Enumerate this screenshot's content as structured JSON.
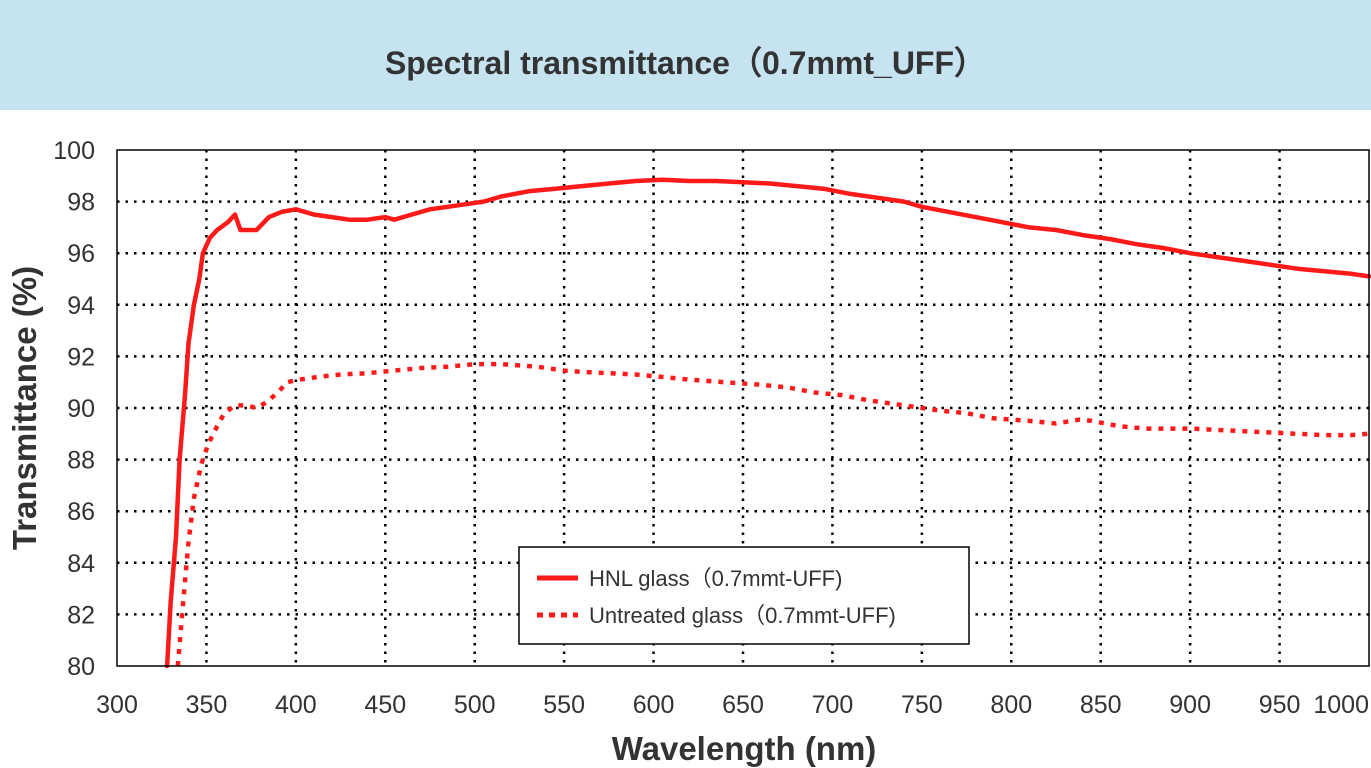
{
  "header": {
    "title": "Spectral transmittance（0.7mmt_UFF）"
  },
  "colors": {
    "header_bg": "#c5e4f0",
    "series": "#ff1a1a",
    "grid": "#000000",
    "text": "#333333"
  },
  "chart_data": {
    "type": "line",
    "title": "Spectral transmittance（0.7mmt_UFF）",
    "xlabel": "Wavelength (nm)",
    "ylabel": "Transmittance (%)",
    "xlim": [
      300,
      1000
    ],
    "ylim": [
      80,
      100
    ],
    "x_ticks": [
      "300",
      "350",
      "400",
      "450",
      "500",
      "550",
      "600",
      "650",
      "700",
      "750",
      "800",
      "850",
      "900",
      "950",
      "1000"
    ],
    "y_ticks": [
      "80",
      "82",
      "84",
      "86",
      "88",
      "90",
      "92",
      "94",
      "96",
      "98",
      "100"
    ],
    "grid": true,
    "grid_style": "dotted",
    "legend_position": "bottom-center",
    "series": [
      {
        "name": "HNL glass（0.7mmt-UFF)",
        "style": "solid",
        "color": "#ff1a1a",
        "points": [
          [
            328,
            80
          ],
          [
            330,
            82.5
          ],
          [
            333,
            85
          ],
          [
            335,
            88
          ],
          [
            338,
            90.5
          ],
          [
            340,
            92.5
          ],
          [
            343,
            94
          ],
          [
            346,
            95
          ],
          [
            348,
            96
          ],
          [
            352,
            96.6
          ],
          [
            356,
            96.9
          ],
          [
            362,
            97.2
          ],
          [
            366,
            97.5
          ],
          [
            369,
            96.9
          ],
          [
            373,
            96.9
          ],
          [
            378,
            96.9
          ],
          [
            385,
            97.4
          ],
          [
            392,
            97.6
          ],
          [
            400,
            97.7
          ],
          [
            410,
            97.5
          ],
          [
            420,
            97.4
          ],
          [
            430,
            97.3
          ],
          [
            440,
            97.3
          ],
          [
            450,
            97.4
          ],
          [
            455,
            97.3
          ],
          [
            465,
            97.5
          ],
          [
            475,
            97.7
          ],
          [
            485,
            97.8
          ],
          [
            495,
            97.9
          ],
          [
            505,
            98.0
          ],
          [
            515,
            98.2
          ],
          [
            530,
            98.4
          ],
          [
            545,
            98.5
          ],
          [
            560,
            98.6
          ],
          [
            575,
            98.7
          ],
          [
            590,
            98.8
          ],
          [
            605,
            98.85
          ],
          [
            620,
            98.8
          ],
          [
            635,
            98.8
          ],
          [
            650,
            98.75
          ],
          [
            665,
            98.7
          ],
          [
            680,
            98.6
          ],
          [
            695,
            98.5
          ],
          [
            710,
            98.3
          ],
          [
            725,
            98.15
          ],
          [
            740,
            98.0
          ],
          [
            750,
            97.8
          ],
          [
            765,
            97.6
          ],
          [
            780,
            97.4
          ],
          [
            795,
            97.2
          ],
          [
            810,
            97.0
          ],
          [
            825,
            96.9
          ],
          [
            840,
            96.7
          ],
          [
            855,
            96.55
          ],
          [
            870,
            96.35
          ],
          [
            885,
            96.2
          ],
          [
            900,
            96.0
          ],
          [
            915,
            95.85
          ],
          [
            930,
            95.7
          ],
          [
            945,
            95.55
          ],
          [
            960,
            95.4
          ],
          [
            975,
            95.3
          ],
          [
            990,
            95.2
          ],
          [
            1000,
            95.1
          ]
        ]
      },
      {
        "name": "Untreated glass（0.7mmt-UFF)",
        "style": "dotted",
        "color": "#ff1a1a",
        "points": [
          [
            334,
            80
          ],
          [
            337,
            82.5
          ],
          [
            340,
            84.8
          ],
          [
            343,
            86.5
          ],
          [
            347,
            87.8
          ],
          [
            351,
            88.6
          ],
          [
            356,
            89.3
          ],
          [
            360,
            89.8
          ],
          [
            366,
            90.1
          ],
          [
            372,
            90.1
          ],
          [
            378,
            90.0
          ],
          [
            383,
            90.2
          ],
          [
            390,
            90.6
          ],
          [
            395,
            91.0
          ],
          [
            402,
            91.1
          ],
          [
            412,
            91.2
          ],
          [
            425,
            91.3
          ],
          [
            440,
            91.35
          ],
          [
            455,
            91.45
          ],
          [
            470,
            91.55
          ],
          [
            485,
            91.6
          ],
          [
            500,
            91.7
          ],
          [
            515,
            91.7
          ],
          [
            525,
            91.65
          ],
          [
            535,
            91.6
          ],
          [
            550,
            91.45
          ],
          [
            560,
            91.4
          ],
          [
            575,
            91.35
          ],
          [
            590,
            91.3
          ],
          [
            605,
            91.2
          ],
          [
            620,
            91.1
          ],
          [
            640,
            91.0
          ],
          [
            660,
            90.9
          ],
          [
            675,
            90.8
          ],
          [
            690,
            90.6
          ],
          [
            705,
            90.5
          ],
          [
            720,
            90.3
          ],
          [
            740,
            90.1
          ],
          [
            760,
            89.9
          ],
          [
            775,
            89.8
          ],
          [
            790,
            89.6
          ],
          [
            810,
            89.5
          ],
          [
            825,
            89.4
          ],
          [
            838,
            89.55
          ],
          [
            845,
            89.5
          ],
          [
            860,
            89.3
          ],
          [
            875,
            89.2
          ],
          [
            890,
            89.2
          ],
          [
            900,
            89.2
          ],
          [
            915,
            89.15
          ],
          [
            930,
            89.1
          ],
          [
            945,
            89.05
          ],
          [
            960,
            89.0
          ],
          [
            975,
            88.95
          ],
          [
            990,
            88.95
          ],
          [
            1000,
            89.0
          ]
        ]
      }
    ]
  }
}
